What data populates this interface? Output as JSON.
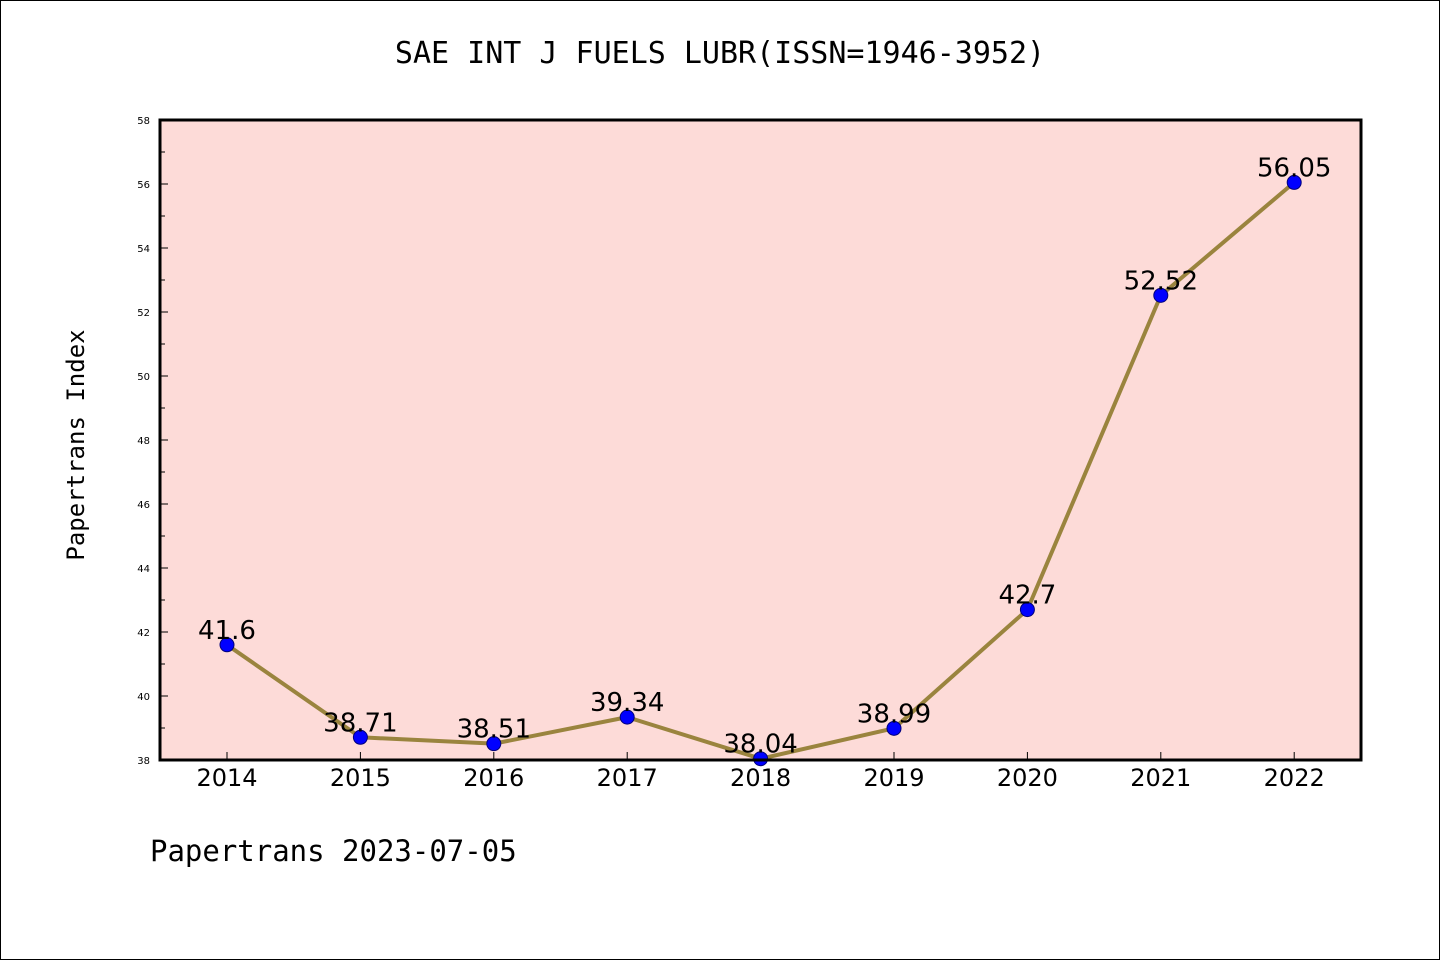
{
  "title": "SAE INT J FUELS LUBR(ISSN=1946-3952)",
  "footer": "Papertrans 2023-07-05",
  "colors": {
    "plot_background": "#fddbd8",
    "line": "#9a843e",
    "marker": "#0000ff"
  },
  "chart_data": {
    "type": "line",
    "title": "SAE INT J FUELS LUBR(ISSN=1946-3952)",
    "xlabel": "",
    "ylabel": "Papertrans Index",
    "categories": [
      "2014",
      "2015",
      "2016",
      "2017",
      "2018",
      "2019",
      "2020",
      "2021",
      "2022"
    ],
    "series": [
      {
        "values": [
          41.6,
          38.71,
          38.51,
          39.34,
          38.04,
          38.99,
          42.7,
          52.52,
          56.05
        ],
        "labels": [
          "41.6",
          "38.71",
          "38.51",
          "39.34",
          "38.04",
          "38.99",
          "42.7",
          "52.52",
          "56.05"
        ]
      }
    ],
    "ylim": [
      38,
      58
    ],
    "yticks": [
      38,
      40,
      42,
      44,
      46,
      48,
      50,
      52,
      54,
      56,
      58
    ],
    "grid": false,
    "legend": "none"
  }
}
